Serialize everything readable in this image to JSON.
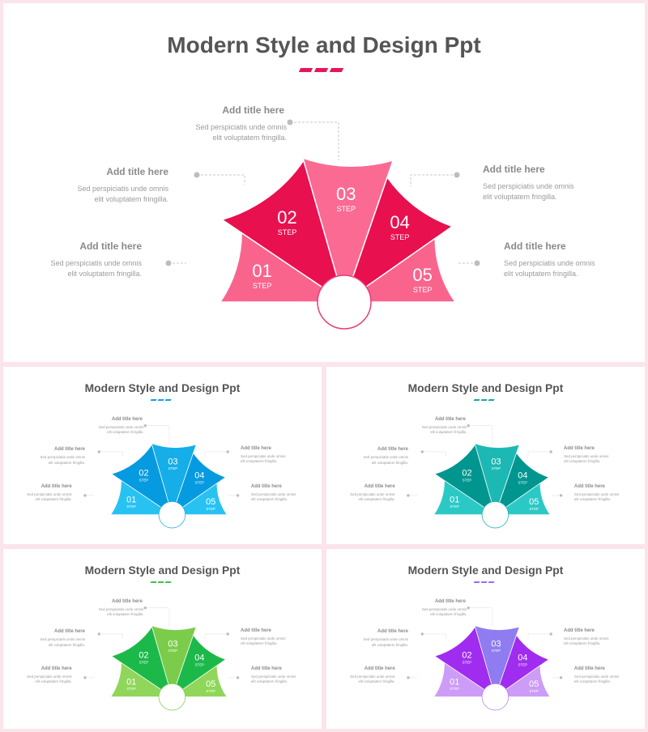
{
  "title": "Modern Style and Design Ppt",
  "labels": [
    {
      "title": "Add title here",
      "line1": "Sed perspiciatis unde omnis",
      "line2": "elit voluptatem fringilla."
    },
    {
      "title": "Add title here",
      "line1": "Sed perspiciatis unde omnis",
      "line2": "elit voluptatem fringilla."
    },
    {
      "title": "Add title here",
      "line1": "Sed perspiciatis unde omnis",
      "line2": "elit voluptatem fringilla."
    },
    {
      "title": "Add title here",
      "line1": "Sed perspiciatis unde omnis",
      "line2": "elit voluptatem fringilla."
    },
    {
      "title": "Add title here",
      "line1": "Sed perspiciatis unde omnis",
      "line2": "elit voluptatem fringilla."
    }
  ],
  "steps": [
    {
      "num": "01",
      "word": "STEP"
    },
    {
      "num": "02",
      "word": "STEP"
    },
    {
      "num": "03",
      "word": "STEP"
    },
    {
      "num": "04",
      "word": "STEP"
    },
    {
      "num": "05",
      "word": "STEP"
    }
  ],
  "themes": [
    {
      "name": "pink",
      "light": "#f9648d",
      "dark": "#e9104f",
      "mid": "#fa6a93",
      "ring": "#ea3c78",
      "accent": "#e8155c"
    },
    {
      "name": "blue",
      "light": "#27c2f2",
      "dark": "#069be0",
      "mid": "#15aee8",
      "ring": "#1aa6e0",
      "accent": "#0ea2e1"
    },
    {
      "name": "teal",
      "light": "#2bc9c6",
      "dark": "#009690",
      "mid": "#1cb9b4",
      "ring": "#12a9a5",
      "accent": "#14aaa6"
    },
    {
      "name": "green",
      "light": "#8fd65a",
      "dark": "#1cb94a",
      "mid": "#7ccc4c",
      "ring": "#7ccc4c",
      "accent": "#3ec14a"
    },
    {
      "name": "purple",
      "light": "#cc9cf6",
      "dark": "#a02cf0",
      "mid": "#8f7cf0",
      "ring": "#b57df0",
      "accent": "#9a6cf0"
    }
  ]
}
